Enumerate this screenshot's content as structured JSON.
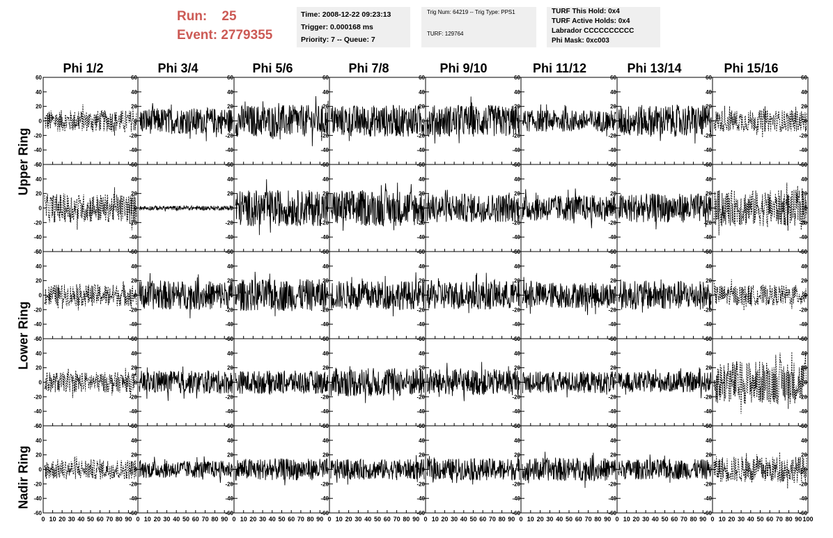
{
  "header": {
    "run_label": "Run:",
    "run_value": "25",
    "event_label": "Event:",
    "event_value": "2779355",
    "accent_color": "#cc5a55"
  },
  "info_time": {
    "time": "Time: 2008-12-22 09:23:13",
    "trigger": "Trigger: 0.000168 ms",
    "priority": "Priority: 7 -- Queue: 7"
  },
  "info_trig": {
    "trig": "Trig Num: 64219 -- Trig Type: PPS1",
    "turf": "TURF: 129764"
  },
  "info_turf": {
    "this_hold": "TURF This Hold: 0x4",
    "active_holds": "TURF Active Holds: 0x4",
    "labrador": "Labrador CCCCCCCCCC",
    "phi_mask": "Phi Mask: 0xc003"
  },
  "columns": [
    "Phi 1/2",
    "Phi 3/4",
    "Phi 5/6",
    "Phi 7/8",
    "Phi 9/10",
    "Phi 11/12",
    "Phi 13/14",
    "Phi 15/16"
  ],
  "rings": [
    "Upper Ring",
    "Lower Ring",
    "Nadir Ring"
  ],
  "chart_data": {
    "type": "line",
    "grid": false,
    "xlim": [
      0,
      100
    ],
    "ylim": [
      -60,
      60
    ],
    "x_ticks": [
      0,
      10,
      20,
      30,
      40,
      50,
      60,
      70,
      80,
      90
    ],
    "x_tick_labels_bottom": "0 1020304050607080901",
    "last_x_tick_label": "0 1020304050607080901000",
    "y_ticks": [
      -60,
      -40,
      -20,
      0,
      20,
      40,
      60
    ],
    "panel_rows": 5,
    "panel_cols": 8,
    "panels": [
      {
        "row": 0,
        "col": 0,
        "style": "dashed",
        "amplitude": 15
      },
      {
        "row": 0,
        "col": 1,
        "style": "solid",
        "amplitude": 18
      },
      {
        "row": 0,
        "col": 2,
        "style": "solid",
        "amplitude": 22
      },
      {
        "row": 0,
        "col": 3,
        "style": "solid",
        "amplitude": 22
      },
      {
        "row": 0,
        "col": 4,
        "style": "solid",
        "amplitude": 22
      },
      {
        "row": 0,
        "col": 5,
        "style": "solid",
        "amplitude": 15
      },
      {
        "row": 0,
        "col": 6,
        "style": "solid",
        "amplitude": 22
      },
      {
        "row": 0,
        "col": 7,
        "style": "dashed",
        "amplitude": 15
      },
      {
        "row": 1,
        "col": 0,
        "style": "dashed",
        "amplitude": 20
      },
      {
        "row": 1,
        "col": 1,
        "style": "solid",
        "amplitude": 3
      },
      {
        "row": 1,
        "col": 2,
        "style": "solid",
        "amplitude": 25
      },
      {
        "row": 1,
        "col": 3,
        "style": "solid",
        "amplitude": 25
      },
      {
        "row": 1,
        "col": 4,
        "style": "solid",
        "amplitude": 20
      },
      {
        "row": 1,
        "col": 5,
        "style": "solid",
        "amplitude": 18
      },
      {
        "row": 1,
        "col": 6,
        "style": "solid",
        "amplitude": 20
      },
      {
        "row": 1,
        "col": 7,
        "style": "dashed",
        "amplitude": 25
      },
      {
        "row": 2,
        "col": 0,
        "style": "dashed",
        "amplitude": 15
      },
      {
        "row": 2,
        "col": 1,
        "style": "solid",
        "amplitude": 20
      },
      {
        "row": 2,
        "col": 2,
        "style": "solid",
        "amplitude": 22
      },
      {
        "row": 2,
        "col": 3,
        "style": "solid",
        "amplitude": 20
      },
      {
        "row": 2,
        "col": 4,
        "style": "solid",
        "amplitude": 20
      },
      {
        "row": 2,
        "col": 5,
        "style": "solid",
        "amplitude": 18
      },
      {
        "row": 2,
        "col": 6,
        "style": "solid",
        "amplitude": 20
      },
      {
        "row": 2,
        "col": 7,
        "style": "dashed",
        "amplitude": 14
      },
      {
        "row": 3,
        "col": 0,
        "style": "dashed",
        "amplitude": 14
      },
      {
        "row": 3,
        "col": 1,
        "style": "solid",
        "amplitude": 16
      },
      {
        "row": 3,
        "col": 2,
        "style": "solid",
        "amplitude": 16
      },
      {
        "row": 3,
        "col": 3,
        "style": "solid",
        "amplitude": 20
      },
      {
        "row": 3,
        "col": 4,
        "style": "solid",
        "amplitude": 18
      },
      {
        "row": 3,
        "col": 5,
        "style": "solid",
        "amplitude": 15
      },
      {
        "row": 3,
        "col": 6,
        "style": "solid",
        "amplitude": 14
      },
      {
        "row": 3,
        "col": 7,
        "style": "dashed",
        "amplitude": 30
      },
      {
        "row": 4,
        "col": 0,
        "style": "dashed",
        "amplitude": 14
      },
      {
        "row": 4,
        "col": 1,
        "style": "solid",
        "amplitude": 12
      },
      {
        "row": 4,
        "col": 2,
        "style": "solid",
        "amplitude": 15
      },
      {
        "row": 4,
        "col": 3,
        "style": "solid",
        "amplitude": 14
      },
      {
        "row": 4,
        "col": 4,
        "style": "solid",
        "amplitude": 15
      },
      {
        "row": 4,
        "col": 5,
        "style": "solid",
        "amplitude": 16
      },
      {
        "row": 4,
        "col": 6,
        "style": "solid",
        "amplitude": 14
      },
      {
        "row": 4,
        "col": 7,
        "style": "dashed",
        "amplitude": 18
      }
    ]
  }
}
